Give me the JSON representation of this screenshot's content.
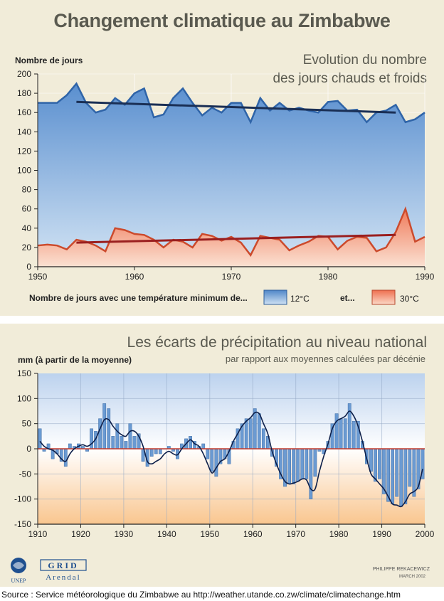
{
  "main_title": "Changement climatique au Zimbabwe",
  "source": "Source : Service météorologique du Zimbabwe au http://weather.utande.co.zw/climate/climatechange.htm",
  "credit": {
    "author": "PHILIPPE REKACEWICZ",
    "date": "MARCH 2002"
  },
  "logos": {
    "unep": "UNEP",
    "grid_top": "GRID",
    "grid_bottom": "Arendal"
  },
  "colors": {
    "panel_bg": "#f1ecd9",
    "cold_series": "#5a8fcf",
    "hot_series": "#ef7a5a",
    "cold_trend": "#1a2f55",
    "hot_trend": "#9a1f1f",
    "precip_bar": "#6a9ad2"
  },
  "chart_data": [
    {
      "type": "area",
      "title": "Evolution du nombre",
      "subtitle": "des jours chauds et froids",
      "ylabel": "Nombre de jours",
      "xlim": [
        1950,
        1990
      ],
      "ylim": [
        0,
        200
      ],
      "x_ticks": [
        1950,
        1960,
        1970,
        1980,
        1990
      ],
      "y_ticks": [
        0,
        20,
        40,
        60,
        80,
        100,
        120,
        140,
        160,
        180,
        200
      ],
      "grid": true,
      "legend": {
        "caption": "Nombre de jours avec une température minimum de...",
        "joiner": "et..."
      },
      "x": [
        1950,
        1951,
        1952,
        1953,
        1954,
        1955,
        1956,
        1957,
        1958,
        1959,
        1960,
        1961,
        1962,
        1963,
        1964,
        1965,
        1966,
        1967,
        1968,
        1969,
        1970,
        1971,
        1972,
        1973,
        1974,
        1975,
        1976,
        1977,
        1978,
        1979,
        1980,
        1981,
        1982,
        1983,
        1984,
        1985,
        1986,
        1987,
        1988,
        1989,
        1990
      ],
      "series": [
        {
          "name": "12°C",
          "values": [
            170,
            170,
            170,
            178,
            190,
            170,
            160,
            163,
            175,
            168,
            180,
            185,
            155,
            158,
            175,
            185,
            170,
            157,
            165,
            160,
            170,
            170,
            150,
            175,
            162,
            170,
            162,
            165,
            162,
            160,
            171,
            172,
            162,
            163,
            150,
            160,
            162,
            168,
            150,
            153,
            160
          ]
        },
        {
          "name": "30°C",
          "values": [
            22,
            23,
            22,
            18,
            28,
            26,
            22,
            16,
            40,
            38,
            34,
            33,
            28,
            20,
            28,
            26,
            20,
            34,
            32,
            27,
            31,
            25,
            12,
            32,
            30,
            28,
            17,
            22,
            26,
            32,
            31,
            18,
            27,
            31,
            30,
            16,
            20,
            36,
            60,
            26,
            31
          ]
        }
      ],
      "trends": [
        {
          "name": "12°C",
          "x": [
            1954,
            1987
          ],
          "y": [
            171,
            160
          ]
        },
        {
          "name": "30°C",
          "x": [
            1954,
            1987
          ],
          "y": [
            25,
            33
          ]
        }
      ]
    },
    {
      "type": "bar",
      "title": "Les écarts de précipitation au niveau national",
      "subtitle": "par rapport aux moyennes calculées par décénie",
      "ylabel": "mm (à partir de la moyenne)",
      "xlim": [
        1910,
        2000
      ],
      "ylim": [
        -150,
        150
      ],
      "x_ticks": [
        1910,
        1920,
        1930,
        1940,
        1950,
        1960,
        1970,
        1980,
        1990,
        2000
      ],
      "y_ticks": [
        150,
        100,
        50,
        0,
        -50,
        -100,
        -150
      ],
      "grid": true,
      "x": [
        1910,
        1911,
        1912,
        1913,
        1914,
        1915,
        1916,
        1917,
        1918,
        1919,
        1920,
        1921,
        1922,
        1923,
        1924,
        1925,
        1926,
        1927,
        1928,
        1929,
        1930,
        1931,
        1932,
        1933,
        1934,
        1935,
        1936,
        1937,
        1938,
        1939,
        1940,
        1941,
        1942,
        1943,
        1944,
        1945,
        1946,
        1947,
        1948,
        1949,
        1950,
        1951,
        1952,
        1953,
        1954,
        1955,
        1956,
        1957,
        1958,
        1959,
        1960,
        1961,
        1962,
        1963,
        1964,
        1965,
        1966,
        1967,
        1968,
        1969,
        1970,
        1971,
        1972,
        1973,
        1974,
        1975,
        1976,
        1977,
        1978,
        1979,
        1980,
        1981,
        1982,
        1983,
        1984,
        1985,
        1986,
        1987,
        1988,
        1989,
        1990,
        1991,
        1992,
        1993,
        1994,
        1995,
        1996,
        1997,
        1998,
        1999
      ],
      "values": [
        40,
        -5,
        10,
        -20,
        -10,
        -25,
        -35,
        10,
        5,
        10,
        5,
        -5,
        40,
        35,
        60,
        90,
        80,
        25,
        50,
        25,
        15,
        50,
        25,
        30,
        -25,
        -35,
        -15,
        -10,
        -10,
        0,
        5,
        -5,
        -20,
        10,
        20,
        25,
        15,
        5,
        10,
        -20,
        -45,
        -55,
        -30,
        -20,
        -30,
        15,
        40,
        50,
        60,
        60,
        80,
        70,
        40,
        25,
        -15,
        -35,
        -60,
        -75,
        -70,
        -70,
        -65,
        -60,
        -60,
        -100,
        -55,
        -5,
        -10,
        15,
        50,
        70,
        60,
        60,
        90,
        55,
        55,
        15,
        -30,
        -45,
        -65,
        -60,
        -90,
        -105,
        -110,
        -95,
        -115,
        -110,
        -75,
        -95,
        -80,
        -60
      ],
      "smoothed": [
        15,
        5,
        0,
        -3,
        -10,
        -20,
        -25,
        -10,
        0,
        5,
        8,
        5,
        10,
        20,
        40,
        58,
        58,
        45,
        35,
        28,
        25,
        35,
        35,
        25,
        5,
        -25,
        -30,
        -25,
        -20,
        -10,
        -5,
        -10,
        -12,
        0,
        10,
        18,
        10,
        5,
        -10,
        -30,
        -48,
        -38,
        -25,
        -20,
        -5,
        15,
        30,
        45,
        55,
        62,
        72,
        70,
        50,
        30,
        -5,
        -30,
        -50,
        -65,
        -70,
        -68,
        -65,
        -60,
        -62,
        -80,
        -80,
        -45,
        -15,
        10,
        40,
        55,
        60,
        65,
        75,
        65,
        45,
        15,
        -20,
        -50,
        -60,
        -70,
        -80,
        -95,
        -110,
        -112,
        -115,
        -105,
        -90,
        -85,
        -75,
        -40
      ]
    }
  ]
}
